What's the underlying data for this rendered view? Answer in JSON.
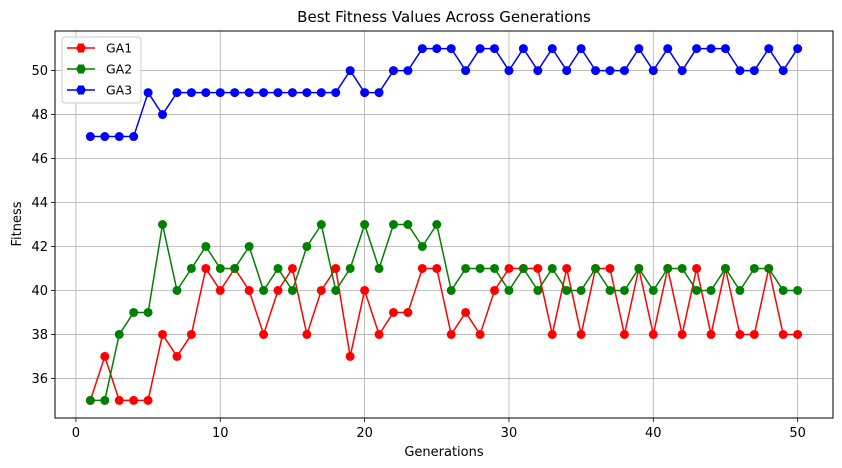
{
  "chart_data": {
    "type": "line",
    "title": "Best Fitness Values Across Generations",
    "xlabel": "Generations",
    "ylabel": "Fitness",
    "xlim": [
      -1.45,
      52.45
    ],
    "ylim": [
      34.2,
      51.8
    ],
    "xticks": [
      0,
      10,
      20,
      30,
      40,
      50
    ],
    "yticks": [
      36,
      38,
      40,
      42,
      44,
      46,
      48,
      50
    ],
    "grid": true,
    "legend_position": "top-left",
    "x": [
      1,
      2,
      3,
      4,
      5,
      6,
      7,
      8,
      9,
      10,
      11,
      12,
      13,
      14,
      15,
      16,
      17,
      18,
      19,
      20,
      21,
      22,
      23,
      24,
      25,
      26,
      27,
      28,
      29,
      30,
      31,
      32,
      33,
      34,
      35,
      36,
      37,
      38,
      39,
      40,
      41,
      42,
      43,
      44,
      45,
      46,
      47,
      48,
      49,
      50
    ],
    "series": [
      {
        "name": "GA1",
        "color": "#ff0000",
        "values": [
          35,
          37,
          35,
          35,
          35,
          38,
          37,
          38,
          41,
          40,
          41,
          40,
          38,
          40,
          41,
          38,
          40,
          41,
          37,
          40,
          38,
          39,
          39,
          41,
          41,
          38,
          39,
          38,
          40,
          41,
          41,
          41,
          38,
          41,
          38,
          41,
          41,
          38,
          41,
          38,
          41,
          38,
          41,
          38,
          41,
          38,
          38,
          41,
          38,
          38
        ]
      },
      {
        "name": "GA2",
        "color": "#008000",
        "values": [
          35,
          35,
          38,
          39,
          39,
          43,
          40,
          41,
          42,
          41,
          41,
          42,
          40,
          41,
          40,
          42,
          43,
          40,
          41,
          43,
          41,
          43,
          43,
          42,
          43,
          40,
          41,
          41,
          41,
          40,
          41,
          40,
          41,
          40,
          40,
          41,
          40,
          40,
          41,
          40,
          41,
          41,
          40,
          40,
          41,
          40,
          41,
          41,
          40,
          40
        ]
      },
      {
        "name": "GA3",
        "color": "#0000ff",
        "values": [
          47,
          47,
          47,
          47,
          49,
          48,
          49,
          49,
          49,
          49,
          49,
          49,
          49,
          49,
          49,
          49,
          49,
          49,
          50,
          49,
          49,
          50,
          50,
          51,
          51,
          51,
          50,
          51,
          51,
          50,
          51,
          50,
          51,
          50,
          51,
          50,
          50,
          50,
          51,
          50,
          51,
          50,
          51,
          51,
          51,
          50,
          50,
          51,
          50,
          51
        ]
      }
    ]
  }
}
